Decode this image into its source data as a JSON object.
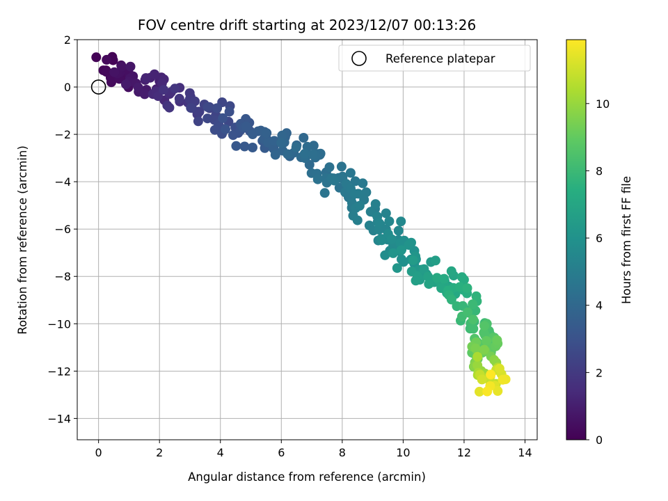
{
  "chart_data": {
    "type": "scatter",
    "title": "FOV centre drift starting at 2023/12/07 00:13:26",
    "xlabel": "Angular distance from reference (arcmin)",
    "ylabel": "Rotation from reference (arcmin)",
    "xlim": [
      -0.7,
      14.4
    ],
    "ylim": [
      -14.9,
      2.0
    ],
    "xticks": [
      0,
      2,
      4,
      6,
      8,
      10,
      12,
      14
    ],
    "yticks": [
      2,
      0,
      -2,
      -4,
      -6,
      -8,
      -10,
      -12,
      -14
    ],
    "grid": true,
    "legend": {
      "location": "upper right",
      "entries": [
        "Reference platepar"
      ]
    },
    "reference_point": {
      "x": 0,
      "y": 0
    },
    "colorbar": {
      "label": "Hours from first FF file",
      "colormap": "viridis",
      "range": [
        0,
        11.9
      ],
      "ticks": [
        0,
        2,
        4,
        6,
        8,
        10
      ]
    },
    "cluster_summary": [
      {
        "x_range": [
          0.0,
          1.7
        ],
        "y_range": [
          -0.4,
          1.3
        ],
        "hours": [
          0,
          1
        ]
      },
      {
        "x_range": [
          2.2,
          4.9
        ],
        "y_range": [
          -2.8,
          0.7
        ],
        "hours": [
          1.5,
          3
        ]
      },
      {
        "x_range": [
          5.2,
          8.2
        ],
        "y_range": [
          -4.0,
          -1.3
        ],
        "hours": [
          3.5,
          4.7
        ]
      },
      {
        "x_range": [
          7.2,
          10.5
        ],
        "y_range": [
          -8.7,
          -3.6
        ],
        "hours": [
          4.7,
          6.3
        ]
      },
      {
        "x_range": [
          10.0,
          12.8
        ],
        "y_range": [
          -10.8,
          -7.4
        ],
        "hours": [
          6.5,
          8.0
        ]
      },
      {
        "x_range": [
          11.9,
          13.4
        ],
        "y_range": [
          -13.0,
          -8.8
        ],
        "hours": [
          8.2,
          9.6
        ]
      },
      {
        "x_range": [
          12.6,
          13.7
        ],
        "y_range": [
          -14.1,
          -10.8
        ],
        "hours": [
          10.0,
          11.9
        ]
      }
    ],
    "points_note": "approx. 350 samples, generated within the cluster ranges above"
  }
}
